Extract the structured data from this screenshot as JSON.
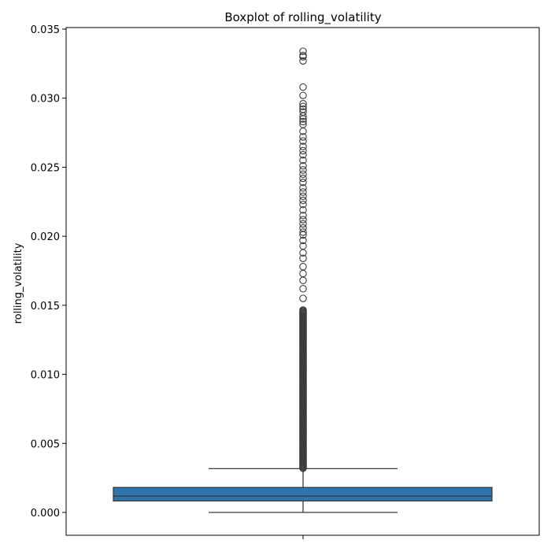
{
  "chart_data": {
    "type": "boxplot",
    "title": "Boxplot of rolling_volatility",
    "xlabel": "",
    "ylabel": "rolling_volatility",
    "ylim": [
      -0.0016,
      0.035
    ],
    "y_ticks": [
      0.0,
      0.005,
      0.01,
      0.015,
      0.02,
      0.025,
      0.03,
      0.035
    ],
    "y_tick_labels": [
      "0.000",
      "0.005",
      "0.010",
      "0.015",
      "0.020",
      "0.025",
      "0.030",
      "0.035"
    ],
    "grid": false,
    "box": {
      "whisker_low": 0.0,
      "q1": 0.00083,
      "median": 0.00118,
      "q3": 0.00181,
      "whisker_high": 0.00317
    },
    "outliers_dense_range": [
      0.0032,
      0.0147
    ],
    "outliers": [
      0.0155,
      0.0162,
      0.0168,
      0.0173,
      0.0178,
      0.0184,
      0.0188,
      0.0193,
      0.0197,
      0.0201,
      0.0203,
      0.0206,
      0.0209,
      0.0212,
      0.0215,
      0.0219,
      0.0223,
      0.0226,
      0.0229,
      0.0232,
      0.0235,
      0.0239,
      0.0242,
      0.0245,
      0.0248,
      0.0251,
      0.0255,
      0.0259,
      0.0262,
      0.0265,
      0.0269,
      0.0272,
      0.0276,
      0.0281,
      0.0283,
      0.0285,
      0.0287,
      0.029,
      0.0292,
      0.0294,
      0.0296,
      0.0302,
      0.0308,
      0.0327,
      0.033,
      0.0331,
      0.0334
    ],
    "colors": {
      "box_fill": "#2e75b0",
      "lines": "#3c3c3c",
      "axes": "#000000"
    }
  }
}
